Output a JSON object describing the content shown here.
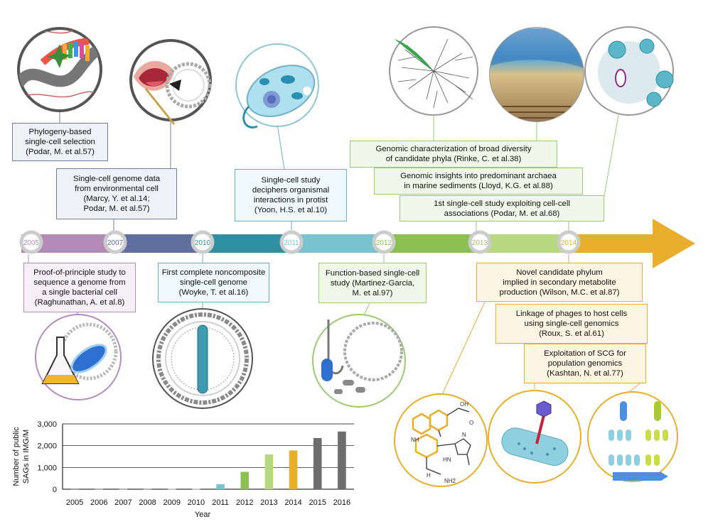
{
  "timeline": {
    "years": [
      "2005",
      "2007",
      "2010",
      "2011",
      "2012",
      "2013",
      "2014"
    ]
  },
  "events_top": [
    {
      "lines": [
        "Phylogeny-based",
        "single-cell selection",
        "(Podar, M. et al.57)"
      ]
    },
    {
      "lines": [
        "Single-cell genome data",
        "from environmental cell",
        "(Marcy, Y. et al.14;",
        "Podar, M. et al.57)"
      ]
    },
    {
      "lines": [
        "Single-cell study",
        "deciphers organismal",
        "interactions in protist",
        "(Yoon, H.S. et al.10)"
      ]
    },
    {
      "lines": [
        "Genomic characterization of broad diversity",
        "of candidate phyla (Rinke, C. et al.38)"
      ]
    },
    {
      "lines": [
        "Genomic insights into predominant archaea",
        "in marine sediments (Lloyd, K.G. et al.88)"
      ]
    },
    {
      "lines": [
        "1st single-cell study exploiting cell-cell",
        "associations (Podar, M. et al.68)"
      ]
    }
  ],
  "events_bottom": [
    {
      "lines": [
        "Proof-of-principle study to",
        "sequence a genome from",
        "a single bacterial cell",
        "(Raghunathan, A. et al.8)"
      ]
    },
    {
      "lines": [
        "First complete noncomposite",
        "single-cell genome",
        "(Woyke, T. et al.16)"
      ]
    },
    {
      "lines": [
        "Function-based single-cell",
        "study (Martinez-Garcia,",
        "M. et al.97)"
      ]
    },
    {
      "lines": [
        "Novel candidate phylum",
        "implied in secondary metabolite",
        "production (Wilson, M.C. et al.87)"
      ]
    },
    {
      "lines": [
        "Linkage of phages to host cells",
        "using single-cell genomics",
        "(Roux, S. et al.61)"
      ]
    },
    {
      "lines": [
        "Exploitation of SCG for",
        "population genomics",
        "(Kashtan, N. et al.77)"
      ]
    }
  ],
  "illustrations": {
    "molecule_labels": [
      "OH",
      "O",
      "N",
      "NH",
      "HN",
      "H",
      "NH2"
    ]
  },
  "colors": {
    "timeline": [
      "#b38ab5",
      "#5f6f9e",
      "#2e8fa0",
      "#79c3d1",
      "#8cc152",
      "#b7d780",
      "#e8ae2c"
    ],
    "box_border": [
      "#6e7fa6",
      "#6e7fa6",
      "#6eb0c6",
      "#9bcb71",
      "#9bcb71",
      "#9bcb71",
      "#b68cc0",
      "#6eb0c6",
      "#9bcb71",
      "#e8ae2c",
      "#e8ae2c",
      "#e8ae2c"
    ]
  },
  "chart_data": {
    "type": "bar",
    "categories": [
      "2005",
      "2006",
      "2007",
      "2008",
      "2009",
      "2010",
      "2011",
      "2012",
      "2013",
      "2014",
      "2015",
      "2016"
    ],
    "values": [
      5,
      10,
      10,
      10,
      15,
      15,
      230,
      800,
      1600,
      1780,
      2350,
      2650
    ],
    "colors": [
      "#999999",
      "#999999",
      "#999999",
      "#999999",
      "#999999",
      "#999999",
      "#79c3d1",
      "#8cc152",
      "#b7d780",
      "#e8ae2c",
      "#6d6d6d",
      "#6d6d6d"
    ],
    "ylabel_lines": [
      "Number of public",
      "SAGs in IMG/M"
    ],
    "xlabel": "Year",
    "ylim": [
      0,
      3000
    ],
    "yticks": [
      0,
      1000,
      2000,
      3000
    ],
    "ytick_labels": [
      "0",
      "1,000",
      "2,000",
      "3,000"
    ]
  }
}
